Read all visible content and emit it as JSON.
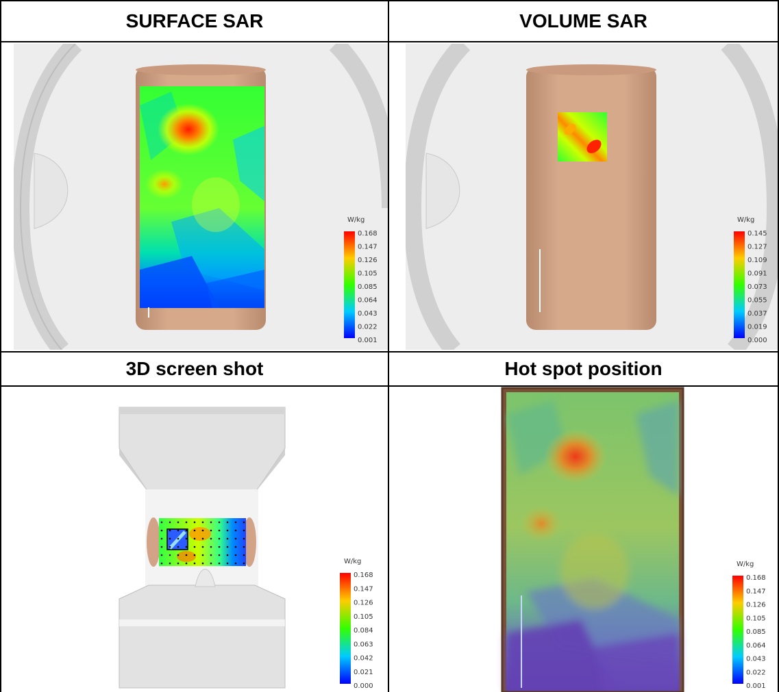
{
  "table": {
    "headers": [
      "SURFACE SAR",
      "VOLUME SAR",
      "3D screen shot",
      "Hot spot position"
    ]
  },
  "legends": {
    "surface_sar": {
      "unit": "W/kg",
      "ticks": [
        "0.168",
        "0.147",
        "0.126",
        "0.105",
        "0.085",
        "0.064",
        "0.043",
        "0.022",
        "0.001"
      ]
    },
    "volume_sar": {
      "unit": "W/kg",
      "ticks": [
        "0.145",
        "0.127",
        "0.109",
        "0.091",
        "0.073",
        "0.055",
        "0.037",
        "0.019",
        "0.000"
      ]
    },
    "screenshot_3d": {
      "unit": "W/kg",
      "ticks": [
        "0.168",
        "0.147",
        "0.126",
        "0.105",
        "0.084",
        "0.063",
        "0.042",
        "0.021",
        "0.000"
      ]
    },
    "hot_spot": {
      "unit": "W/kg",
      "ticks": [
        "0.168",
        "0.147",
        "0.126",
        "0.105",
        "0.085",
        "0.064",
        "0.043",
        "0.022",
        "0.001"
      ]
    }
  },
  "colors": {
    "phantom": "#d2a386",
    "background": "#ececec",
    "ring": "#d4d4d4",
    "scale_top": "#ff0000",
    "scale_bottom": "#0000ff"
  }
}
